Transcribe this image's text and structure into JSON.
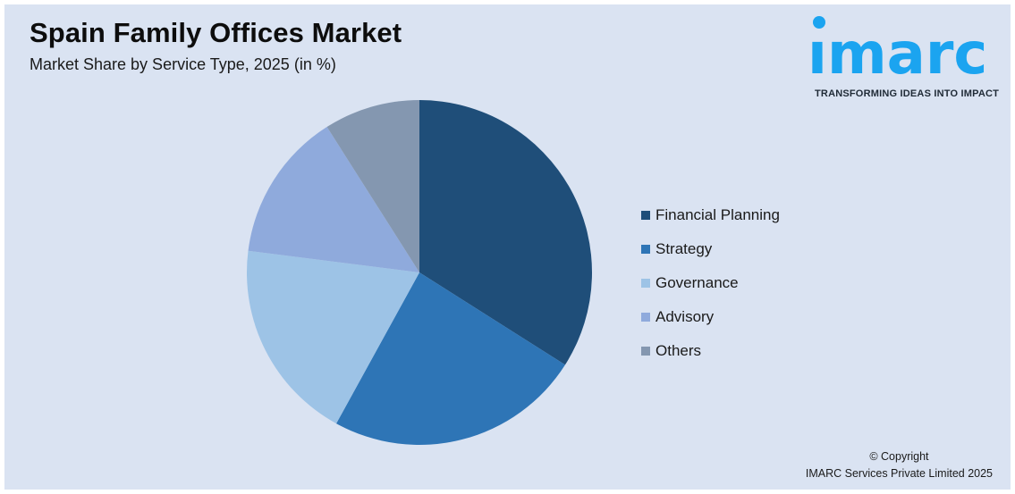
{
  "header": {
    "title": "Spain Family Offices Market",
    "subtitle": "Market Share by Service Type, 2025 (in %)"
  },
  "logo": {
    "wordmark": "ımarc",
    "tagline": "TRANSFORMING IDEAS INTO IMPACT",
    "color": "#1ba4f0"
  },
  "legend": {
    "items": [
      {
        "label": "Financial Planning",
        "color": "#1f4e79"
      },
      {
        "label": "Strategy",
        "color": "#2e75b6"
      },
      {
        "label": "Governance",
        "color": "#9dc3e6"
      },
      {
        "label": "Advisory",
        "color": "#8faadc"
      },
      {
        "label": "Others",
        "color": "#8497b0"
      }
    ]
  },
  "footer": {
    "copyright_line1": "© Copyright",
    "copyright_line2": "IMARC Services Private Limited 2025"
  },
  "chart_data": {
    "type": "pie",
    "title": "Spain Family Offices Market",
    "subtitle": "Market Share by Service Type, 2025 (in %)",
    "categories": [
      "Financial Planning",
      "Strategy",
      "Governance",
      "Advisory",
      "Others"
    ],
    "values": [
      34,
      24,
      19,
      14,
      9
    ],
    "colors": [
      "#1f4e79",
      "#2e75b6",
      "#9dc3e6",
      "#8faadc",
      "#8497b0"
    ],
    "start_angle": "12 o'clock, clockwise",
    "data_labels": false,
    "legend_position": "right"
  }
}
